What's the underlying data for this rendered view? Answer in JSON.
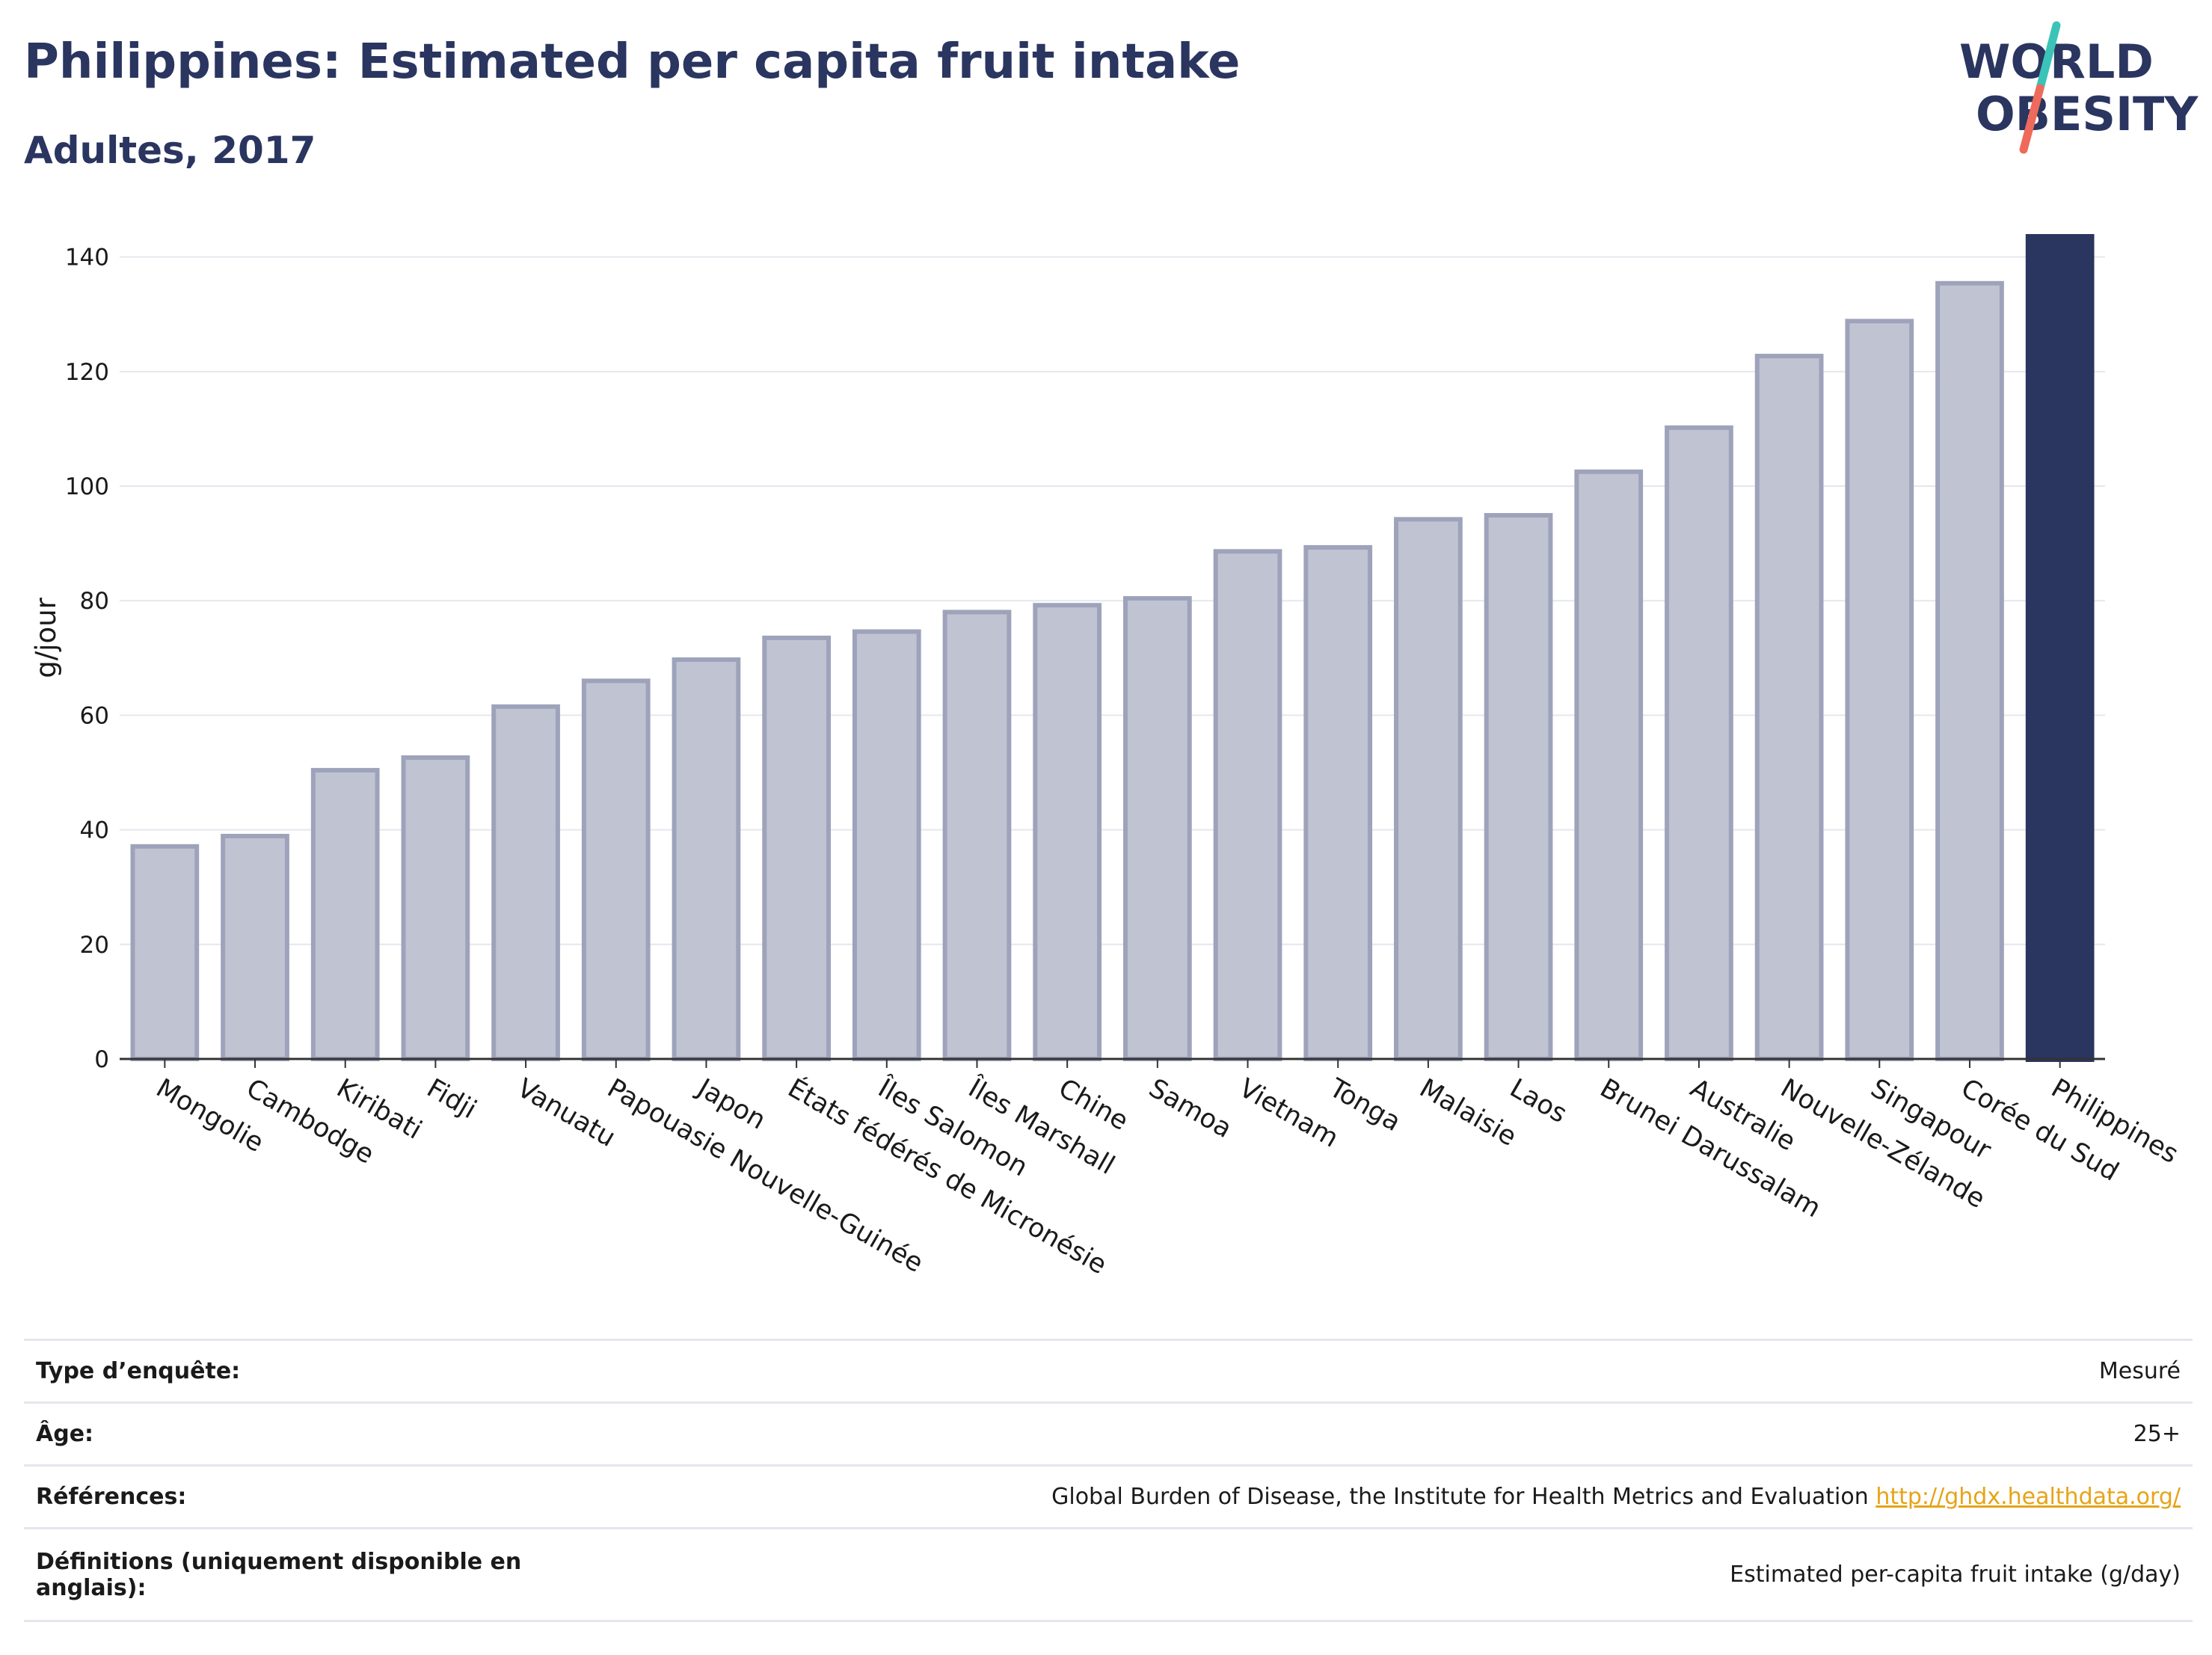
{
  "header": {
    "title": "Philippines: Estimated per capita fruit intake",
    "subtitle": "Adultes, 2017"
  },
  "logo": {
    "line1": "WORLD",
    "line2": "OBESITY",
    "colors": {
      "text": "#2a3560",
      "slash_teal": "#3cc3b8",
      "slash_coral": "#ee6a5a"
    }
  },
  "chart_data": {
    "type": "bar",
    "title": "Philippines: Estimated per capita fruit intake",
    "subtitle": "Adultes, 2017",
    "ylabel": "g/jour",
    "xlabel": "",
    "ylim": [
      0,
      147
    ],
    "yticks": [
      0,
      20,
      40,
      60,
      80,
      100,
      120,
      140
    ],
    "grid": true,
    "highlight": "Philippines",
    "colors": {
      "bar": "#c0c3d1",
      "bar_edge": "#9ea3bb",
      "highlight": "#2a3560",
      "grid": "#e6e7ee",
      "text": "#1a1a1a"
    },
    "categories": [
      "Mongolie",
      "Cambodge",
      "Kiribati",
      "Fidji",
      "Vanuatu",
      "Papouasie Nouvelle-Guinée",
      "Japon",
      "États fédérés de Micronésie",
      "Îles Salomon",
      "Îles Marshall",
      "Chine",
      "Samoa",
      "Vietnam",
      "Tonga",
      "Malaisie",
      "Laos",
      "Brunei Darussalam",
      "Australie",
      "Nouvelle-Zélande",
      "Singapour",
      "Corée du Sud",
      "Philippines"
    ],
    "values": [
      37.5,
      39.3,
      50.8,
      53.0,
      61.9,
      66.4,
      70.1,
      73.9,
      75.0,
      78.4,
      79.6,
      80.8,
      89.0,
      89.7,
      94.6,
      95.3,
      102.9,
      110.6,
      123.1,
      129.2,
      135.8,
      144.0
    ]
  },
  "info_table": [
    {
      "key": "Type d’enquête:",
      "value": "Mesuré"
    },
    {
      "key": "Âge:",
      "value": "25+"
    },
    {
      "key": "Références:",
      "value": "Global Burden of Disease, the Institute for Health Metrics and Evaluation",
      "link": "http://ghdx.healthdata.org/"
    },
    {
      "key": "Définitions (uniquement disponible en anglais):",
      "value": "Estimated per-capita fruit intake (g/day)"
    }
  ]
}
